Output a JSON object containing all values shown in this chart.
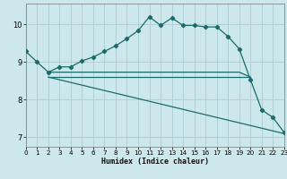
{
  "xlabel": "Humidex (Indice chaleur)",
  "bg_color": "#cce8ec",
  "grid_color": "#aacdd4",
  "line_color": "#1a6b6b",
  "xlim": [
    0,
    23
  ],
  "ylim": [
    6.75,
    10.55
  ],
  "yticks": [
    7,
    8,
    9,
    10
  ],
  "xticks": [
    0,
    1,
    2,
    3,
    4,
    5,
    6,
    7,
    8,
    9,
    10,
    11,
    12,
    13,
    14,
    15,
    16,
    17,
    18,
    19,
    20,
    21,
    22,
    23
  ],
  "line1_x": [
    0,
    1,
    2,
    3,
    4,
    5,
    6,
    7,
    8,
    9,
    10,
    11,
    12,
    13,
    14,
    15,
    16,
    17,
    18,
    19,
    20,
    21,
    22,
    23
  ],
  "line1_y": [
    9.28,
    9.0,
    8.73,
    8.87,
    8.87,
    9.03,
    9.13,
    9.28,
    9.43,
    9.62,
    9.83,
    10.2,
    9.97,
    10.17,
    9.97,
    9.97,
    9.93,
    9.93,
    9.68,
    9.35,
    8.53,
    7.73,
    7.53,
    7.13
  ],
  "line2_x": [
    2,
    3,
    4,
    5,
    6,
    7,
    8,
    9,
    10,
    11,
    12,
    13,
    14,
    15,
    16,
    17,
    18,
    19,
    20
  ],
  "line2_y": [
    8.73,
    8.73,
    8.73,
    8.73,
    8.73,
    8.73,
    8.73,
    8.73,
    8.73,
    8.73,
    8.73,
    8.73,
    8.73,
    8.73,
    8.73,
    8.73,
    8.73,
    8.73,
    8.6
  ],
  "line3_x": [
    2,
    20
  ],
  "line3_y": [
    8.6,
    8.6
  ],
  "line4_x": [
    2,
    23
  ],
  "line4_y": [
    8.6,
    7.1
  ]
}
